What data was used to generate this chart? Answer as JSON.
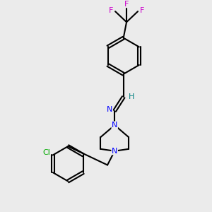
{
  "background_color": "#ebebeb",
  "atom_colors": {
    "C": "#000000",
    "N": "#0000ff",
    "F": "#cc00cc",
    "Cl": "#00aa00",
    "H": "#008080"
  },
  "bond_color": "#000000",
  "bond_width": 1.5,
  "figsize": [
    3.0,
    3.0
  ],
  "dpi": 100
}
